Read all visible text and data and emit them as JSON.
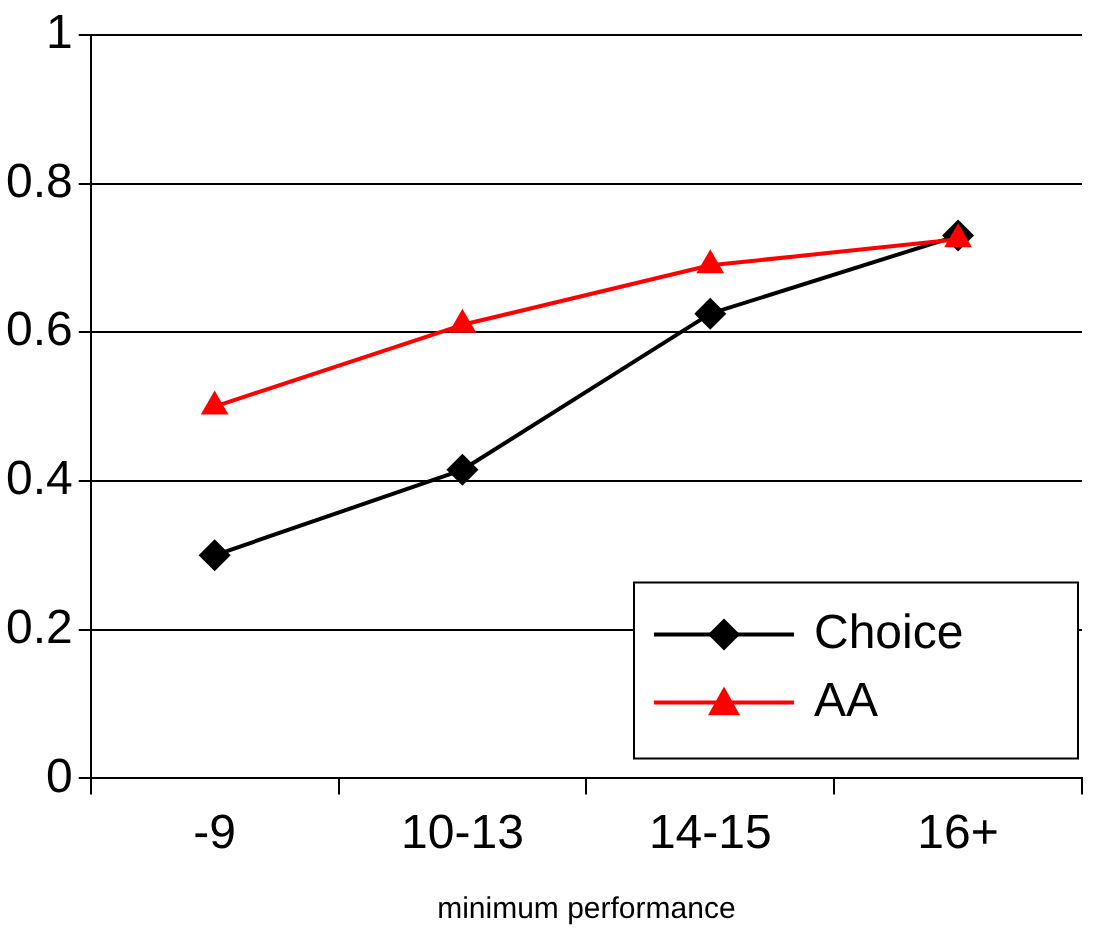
{
  "chart_data": {
    "type": "line",
    "xlabel": "minimum performance",
    "categories": [
      "-9",
      "10-13",
      "14-15",
      "16+"
    ],
    "series": [
      {
        "name": "Choice",
        "color": "#000000",
        "marker": "diamond",
        "values": [
          0.3,
          0.415,
          0.625,
          0.73
        ]
      },
      {
        "name": "AA",
        "color": "#ff0000",
        "marker": "triangle",
        "values": [
          0.5,
          0.61,
          0.69,
          0.725
        ]
      }
    ],
    "ylim": [
      0,
      1
    ],
    "yticks": [
      0,
      0.2,
      0.4,
      0.6,
      0.8,
      1
    ],
    "grid": "y",
    "legend": "bottom right",
    "line_style": "solid"
  }
}
